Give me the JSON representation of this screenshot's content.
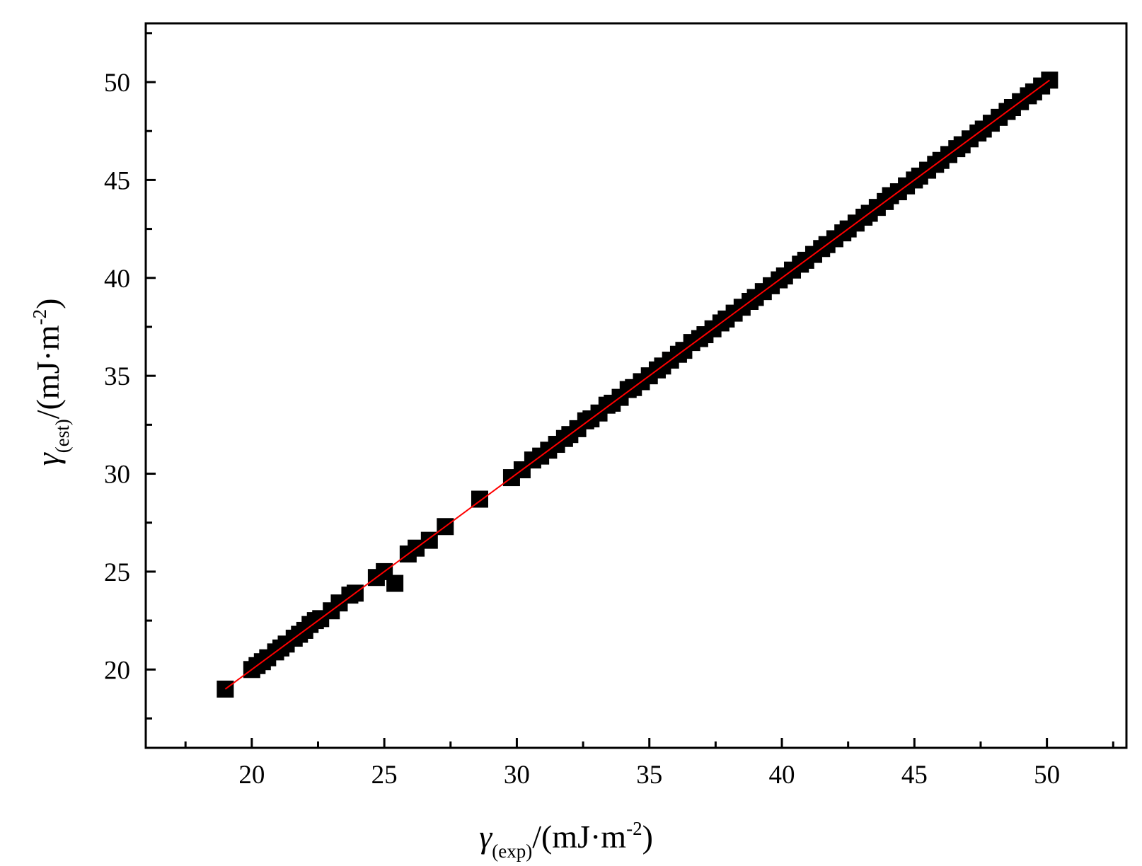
{
  "chart_data": {
    "type": "scatter",
    "title": "",
    "xlabel": {
      "symbol": "γ",
      "subscript": "(exp)",
      "unit_prefix": "/(mJ·m",
      "unit_exponent": "-2",
      "unit_suffix": ")"
    },
    "ylabel": {
      "symbol": "γ",
      "subscript": "(est)",
      "unit_prefix": "/(mJ·m",
      "unit_exponent": "-2",
      "unit_suffix": ")"
    },
    "xlim": [
      16,
      53
    ],
    "ylim": [
      16,
      53
    ],
    "x_ticks": [
      "20",
      "25",
      "30",
      "35",
      "40",
      "45",
      "50"
    ],
    "y_ticks": [
      "20",
      "25",
      "30",
      "35",
      "40",
      "45",
      "50"
    ],
    "grid": false,
    "legend": "none",
    "colors": {
      "points": "#000000",
      "fit_line": "#ff0000",
      "axes": "#000000"
    },
    "series": [
      {
        "kind": "points",
        "marker": "square",
        "x": [
          19.0,
          20.0,
          20.2,
          20.4,
          20.6,
          20.9,
          21.1,
          21.3,
          21.6,
          21.8,
          22.0,
          22.2,
          22.4,
          22.6,
          23.0,
          23.3,
          23.7,
          23.9,
          24.7,
          25.0,
          25.4,
          25.9,
          26.2,
          26.7,
          27.3,
          28.6,
          29.8,
          30.2,
          30.6,
          30.9,
          31.2,
          31.5,
          31.8,
          32.0,
          32.3,
          32.6,
          32.8,
          33.1,
          33.4,
          33.6,
          33.9,
          34.2,
          34.4,
          34.7,
          35.0,
          35.3,
          35.5,
          35.8,
          36.1,
          36.3,
          36.6,
          36.9,
          37.1,
          37.4,
          37.7,
          37.9,
          38.2,
          38.5,
          38.8,
          39.0,
          39.3,
          39.6,
          39.9,
          40.1,
          40.4,
          40.7,
          40.9,
          41.2,
          41.5,
          41.7,
          42.0,
          42.3,
          42.5,
          42.8,
          43.1,
          43.3,
          43.6,
          43.9,
          44.1,
          44.4,
          44.7,
          45.0,
          45.2,
          45.5,
          45.8,
          46.0,
          46.3,
          46.6,
          46.8,
          47.1,
          47.4,
          47.6,
          47.9,
          48.2,
          48.5,
          48.7,
          49.0,
          49.3,
          49.5,
          49.8,
          50.1
        ],
        "y": [
          19.0,
          20.0,
          20.2,
          20.4,
          20.6,
          20.9,
          21.1,
          21.3,
          21.6,
          21.8,
          22.0,
          22.3,
          22.5,
          22.6,
          23.0,
          23.4,
          23.8,
          23.9,
          24.7,
          25.0,
          24.4,
          25.9,
          26.2,
          26.6,
          27.3,
          28.7,
          29.8,
          30.2,
          30.7,
          30.9,
          31.2,
          31.5,
          31.8,
          32.0,
          32.3,
          32.7,
          32.8,
          33.1,
          33.5,
          33.6,
          33.9,
          34.3,
          34.4,
          34.7,
          35.0,
          35.3,
          35.5,
          35.8,
          36.1,
          36.3,
          36.7,
          36.9,
          37.1,
          37.4,
          37.7,
          37.9,
          38.2,
          38.5,
          38.8,
          39.0,
          39.3,
          39.6,
          39.9,
          40.1,
          40.4,
          40.7,
          40.9,
          41.2,
          41.5,
          41.7,
          42.0,
          42.3,
          42.5,
          42.8,
          43.1,
          43.3,
          43.6,
          43.9,
          44.2,
          44.4,
          44.7,
          45.0,
          45.2,
          45.5,
          45.8,
          46.0,
          46.3,
          46.6,
          46.8,
          47.1,
          47.4,
          47.6,
          47.9,
          48.2,
          48.5,
          48.7,
          49.0,
          49.3,
          49.5,
          49.8,
          50.1
        ]
      },
      {
        "kind": "line",
        "x": [
          19.0,
          50.1
        ],
        "y": [
          19.0,
          50.1
        ]
      }
    ]
  }
}
